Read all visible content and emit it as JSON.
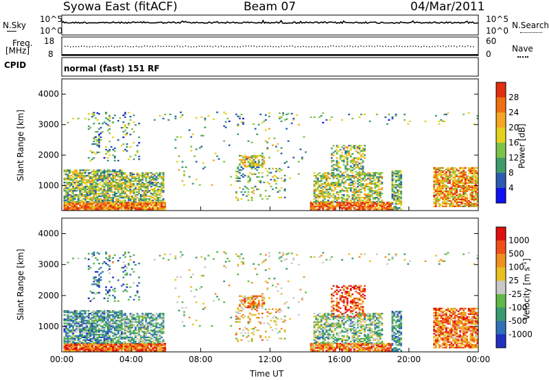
{
  "header": {
    "station": "Syowa East (fitACF)",
    "beam": "Beam 07",
    "date": "04/Mar/2011"
  },
  "top_panels": {
    "nsky_label": "N.Sky",
    "nsky_ticks": [
      "10^5",
      "10^0"
    ],
    "nsearch_label": "N.Search",
    "nsearch_ticks": [
      "10^5",
      "10^0"
    ],
    "freq_label": "Freq.",
    "freq_unit": "[MHz]",
    "freq_ticks": [
      "18",
      "8"
    ],
    "nave_label": "Nave",
    "nave_ticks": [
      "60",
      "0"
    ],
    "cpid_label": "CPID",
    "cpid_text": "normal (fast) 151 RF"
  },
  "colors": {
    "power_scale": [
      "#1010f0",
      "#2b5cb0",
      "#3f9a6a",
      "#7cc24a",
      "#e6d21e",
      "#f5a623",
      "#f07010",
      "#e03010"
    ],
    "velocity_scale": [
      "#2030c0",
      "#3070b8",
      "#3a9a70",
      "#60b848",
      "#c8c8c8",
      "#e8c020",
      "#f09020",
      "#f05018",
      "#e01010"
    ]
  },
  "chart_data": [
    {
      "type": "heatmap",
      "name": "power",
      "ylabel": "Slant Range [km]",
      "ylim": [
        180,
        4500
      ],
      "yticks": [
        "1000",
        "2000",
        "3000",
        "4000"
      ],
      "xlim": [
        0,
        24
      ],
      "colorbar_label": "Power [dB]",
      "colorbar_ticks": [
        "28",
        "24",
        "20",
        "16",
        "12",
        "8",
        "4"
      ],
      "colorbar_range": [
        0,
        32
      ]
    },
    {
      "type": "heatmap",
      "name": "velocity",
      "ylabel": "Slant Range [km]",
      "ylim": [
        180,
        4500
      ],
      "yticks": [
        "1000",
        "2000",
        "3000",
        "4000"
      ],
      "xlim": [
        0,
        24
      ],
      "xlabel": "Time UT",
      "xticks": [
        "00:00",
        "04:00",
        "08:00",
        "12:00",
        "16:00",
        "20:00",
        "00:00"
      ],
      "colorbar_label": "Velocity [m s",
      "colorbar_label_exp": "-1",
      "colorbar_label_end": "]",
      "colorbar_ticks": [
        "1000",
        "500",
        "100",
        "25",
        "-25",
        "-100",
        "-500",
        "-1000"
      ]
    }
  ]
}
